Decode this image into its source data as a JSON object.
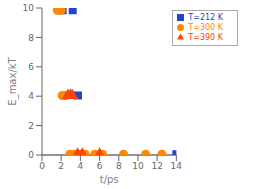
{
  "chart_data": {
    "type": "scatter",
    "xlabel": "t/ps",
    "ylabel": "E_max/kT",
    "xlim": [
      0,
      14
    ],
    "ylim": [
      0,
      10
    ],
    "xticks": [
      0,
      2,
      4,
      6,
      8,
      10,
      12,
      14
    ],
    "yticks": [
      0,
      2,
      4,
      6,
      8,
      10
    ],
    "legend": "upper right",
    "series": [
      {
        "name": "T=212 K",
        "color": "#2244cc",
        "marker": "square",
        "x": [
          1.8,
          2.15,
          3.2,
          3.75,
          14.0
        ],
        "values": [
          9.85,
          9.85,
          9.85,
          4.05,
          0.05
        ]
      },
      {
        "name": "T=300 K",
        "color": "#ff8800",
        "marker": "circle",
        "x": [
          1.6,
          2.0,
          2.1,
          2.35,
          2.6,
          2.9,
          3.4,
          3.9,
          4.5,
          5.5,
          6.3,
          8.5,
          10.8,
          12.5
        ],
        "values": [
          9.85,
          9.85,
          4.05,
          4.05,
          4.05,
          0.05,
          0.05,
          0.05,
          0.05,
          0.05,
          0.05,
          0.05,
          0.05,
          0.05
        ]
      },
      {
        "name": "T=390 K",
        "color": "#ff4400",
        "marker": "triangle",
        "x": [
          2.7,
          2.95,
          3.15,
          3.7,
          4.2,
          6.0
        ],
        "values": [
          4.05,
          4.05,
          4.05,
          0.05,
          0.05,
          0.05
        ]
      }
    ]
  }
}
